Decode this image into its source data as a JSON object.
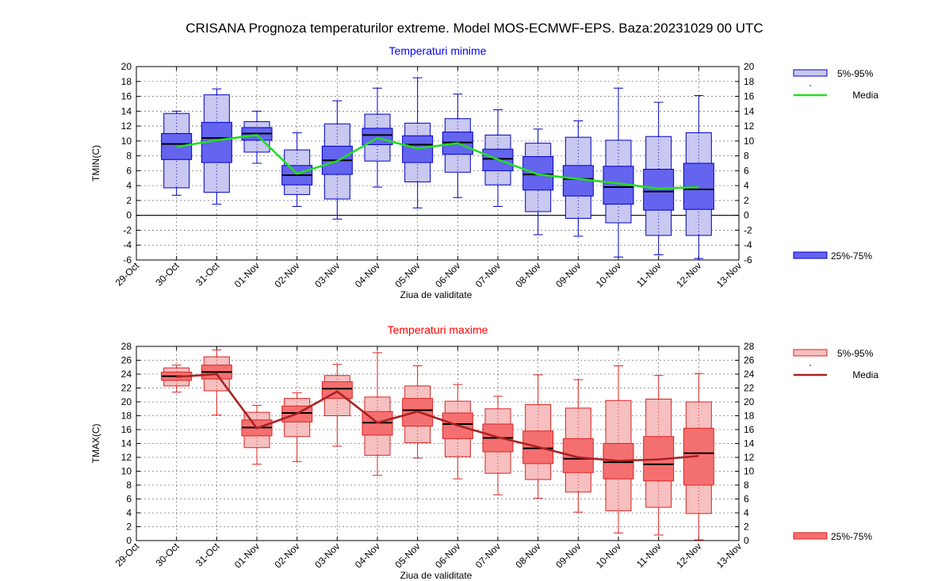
{
  "title": "CRISANA  Prognoza temperaturilor extreme.  Model MOS-ECMWF-EPS. Baza:20231029 00 UTC",
  "chart_data": [
    {
      "type": "boxplot",
      "title": "Temperaturi minime",
      "ylabel": "TMIN(C)",
      "xlabel": "Ziua de validitate",
      "ylim": [
        -6,
        20
      ],
      "yticks": [
        -6,
        -4,
        -2,
        0,
        2,
        4,
        6,
        8,
        10,
        12,
        14,
        16,
        18,
        20
      ],
      "categories": [
        "29-Oct",
        "30-Oct",
        "31-Oct",
        "01-Nov",
        "02-Nov",
        "03-Nov",
        "04-Nov",
        "05-Nov",
        "06-Nov",
        "07-Nov",
        "08-Nov",
        "09-Nov",
        "10-Nov",
        "11-Nov",
        "12-Nov",
        "13-Nov"
      ],
      "grid": true,
      "zero_line": true,
      "colors": {
        "text": "#0000ff",
        "line": "#0000cc",
        "box_outer": "#c8c8f0",
        "box_inner": "#6464ee",
        "mean": "#22dd22"
      },
      "legend": {
        "p5_95": "5%-95%",
        "mean": "Media",
        "p25_75": "25%-75%"
      },
      "boxes": [
        {
          "day": "30-Oct",
          "p5": 2.7,
          "p95": 14.0,
          "p5b": 3.7,
          "p95b": 13.7,
          "q1": 7.5,
          "q3": 11.0,
          "median": 9.6,
          "mean": 9.2
        },
        {
          "day": "31-Oct",
          "p5": 1.5,
          "p95": 17.0,
          "p5b": 3.1,
          "p95b": 16.2,
          "q1": 7.1,
          "q3": 12.5,
          "median": 10.4,
          "mean": 10.1
        },
        {
          "day": "01-Nov",
          "p5": 7.0,
          "p95": 14.0,
          "p5b": 8.5,
          "p95b": 12.6,
          "q1": 10.1,
          "q3": 11.8,
          "median": 11.0,
          "mean": 10.8
        },
        {
          "day": "02-Nov",
          "p5": 1.2,
          "p95": 11.1,
          "p5b": 2.8,
          "p95b": 8.8,
          "q1": 4.1,
          "q3": 6.7,
          "median": 5.4,
          "mean": 5.6
        },
        {
          "day": "03-Nov",
          "p5": -0.5,
          "p95": 15.4,
          "p5b": 2.2,
          "p95b": 12.3,
          "q1": 5.5,
          "q3": 9.3,
          "median": 7.4,
          "mean": 7.3
        },
        {
          "day": "04-Nov",
          "p5": 3.8,
          "p95": 17.1,
          "p5b": 7.3,
          "p95b": 13.6,
          "q1": 9.5,
          "q3": 11.7,
          "median": 10.8,
          "mean": 10.4
        },
        {
          "day": "05-Nov",
          "p5": 1.0,
          "p95": 18.5,
          "p5b": 4.5,
          "p95b": 12.4,
          "q1": 7.1,
          "q3": 10.7,
          "median": 9.5,
          "mean": 9.0
        },
        {
          "day": "06-Nov",
          "p5": 2.4,
          "p95": 16.3,
          "p5b": 5.8,
          "p95b": 13.0,
          "q1": 8.2,
          "q3": 11.2,
          "median": 9.8,
          "mean": 9.7
        },
        {
          "day": "07-Nov",
          "p5": 1.2,
          "p95": 14.2,
          "p5b": 4.1,
          "p95b": 10.8,
          "q1": 6.0,
          "q3": 8.9,
          "median": 7.6,
          "mean": 7.5
        },
        {
          "day": "08-Nov",
          "p5": -2.6,
          "p95": 11.6,
          "p5b": 0.5,
          "p95b": 9.7,
          "q1": 3.4,
          "q3": 7.9,
          "median": 5.5,
          "mean": 5.5
        },
        {
          "day": "09-Nov",
          "p5": -2.8,
          "p95": 12.7,
          "p5b": -0.4,
          "p95b": 10.5,
          "q1": 2.6,
          "q3": 6.7,
          "median": 4.9,
          "mean": 4.9
        },
        {
          "day": "10-Nov",
          "p5": -5.6,
          "p95": 17.1,
          "p5b": -1.0,
          "p95b": 10.1,
          "q1": 1.5,
          "q3": 6.6,
          "median": 3.8,
          "mean": 4.3
        },
        {
          "day": "11-Nov",
          "p5": -5.3,
          "p95": 15.2,
          "p5b": -2.7,
          "p95b": 10.6,
          "q1": 0.7,
          "q3": 6.2,
          "median": 3.2,
          "mean": 3.6
        },
        {
          "day": "12-Nov",
          "p5": -5.8,
          "p95": 16.1,
          "p5b": -2.7,
          "p95b": 11.1,
          "q1": 0.8,
          "q3": 7.0,
          "median": 3.5,
          "mean": 3.8
        }
      ]
    },
    {
      "type": "boxplot",
      "title": "Temperaturi maxime",
      "ylabel": "TMAX(C)",
      "xlabel": "Ziua de validitate",
      "ylim": [
        0,
        28
      ],
      "yticks": [
        0,
        2,
        4,
        6,
        8,
        10,
        12,
        14,
        16,
        18,
        20,
        22,
        24,
        26,
        28
      ],
      "categories": [
        "29-Oct",
        "30-Oct",
        "31-Oct",
        "01-Nov",
        "02-Nov",
        "03-Nov",
        "04-Nov",
        "05-Nov",
        "06-Nov",
        "07-Nov",
        "08-Nov",
        "09-Nov",
        "10-Nov",
        "11-Nov",
        "12-Nov",
        "13-Nov"
      ],
      "grid": true,
      "zero_line": false,
      "colors": {
        "text": "#ff0000",
        "line": "#dd2222",
        "box_outer": "#f6c0c0",
        "box_inner": "#f47070",
        "mean": "#aa2222"
      },
      "legend": {
        "p5_95": "5%-95%",
        "mean": "Media",
        "p25_75": "25%-75%"
      },
      "boxes": [
        {
          "day": "30-Oct",
          "p5": 21.4,
          "p95": 25.3,
          "p5b": 22.3,
          "p95b": 24.9,
          "q1": 23.1,
          "q3": 24.3,
          "median": 23.7,
          "mean": 23.6
        },
        {
          "day": "31-Oct",
          "p5": 18.1,
          "p95": 27.5,
          "p5b": 21.6,
          "p95b": 26.5,
          "q1": 23.3,
          "q3": 25.3,
          "median": 24.3,
          "mean": 24.0
        },
        {
          "day": "01-Nov",
          "p5": 11.0,
          "p95": 19.5,
          "p5b": 13.4,
          "p95b": 18.5,
          "q1": 15.1,
          "q3": 17.4,
          "median": 16.3,
          "mean": 16.2
        },
        {
          "day": "02-Nov",
          "p5": 11.4,
          "p95": 21.3,
          "p5b": 15.0,
          "p95b": 20.5,
          "q1": 17.1,
          "q3": 19.4,
          "median": 18.4,
          "mean": 18.3
        },
        {
          "day": "03-Nov",
          "p5": 13.6,
          "p95": 25.4,
          "p5b": 18.0,
          "p95b": 23.8,
          "q1": 20.5,
          "q3": 22.9,
          "median": 21.9,
          "mean": 21.5
        },
        {
          "day": "04-Nov",
          "p5": 9.4,
          "p95": 27.1,
          "p5b": 12.3,
          "p95b": 20.7,
          "q1": 15.2,
          "q3": 18.6,
          "median": 17.0,
          "mean": 17.0
        },
        {
          "day": "05-Nov",
          "p5": 11.9,
          "p95": 25.2,
          "p5b": 14.1,
          "p95b": 22.3,
          "q1": 16.5,
          "q3": 20.5,
          "median": 18.8,
          "mean": 18.6
        },
        {
          "day": "06-Nov",
          "p5": 8.9,
          "p95": 22.5,
          "p5b": 12.1,
          "p95b": 20.1,
          "q1": 14.7,
          "q3": 18.4,
          "median": 16.8,
          "mean": 16.6
        },
        {
          "day": "07-Nov",
          "p5": 6.6,
          "p95": 20.8,
          "p5b": 9.7,
          "p95b": 19.0,
          "q1": 12.8,
          "q3": 16.8,
          "median": 14.8,
          "mean": 14.9
        },
        {
          "day": "08-Nov",
          "p5": 6.1,
          "p95": 23.9,
          "p5b": 8.8,
          "p95b": 19.6,
          "q1": 11.1,
          "q3": 15.8,
          "median": 13.3,
          "mean": 13.5
        },
        {
          "day": "09-Nov",
          "p5": 4.1,
          "p95": 23.2,
          "p5b": 7.0,
          "p95b": 19.1,
          "q1": 9.8,
          "q3": 14.7,
          "median": 11.8,
          "mean": 12.0
        },
        {
          "day": "10-Nov",
          "p5": 1.1,
          "p95": 25.2,
          "p5b": 4.3,
          "p95b": 20.2,
          "q1": 8.9,
          "q3": 14.0,
          "median": 11.3,
          "mean": 11.5
        },
        {
          "day": "11-Nov",
          "p5": 0.8,
          "p95": 23.8,
          "p5b": 4.8,
          "p95b": 20.4,
          "q1": 8.6,
          "q3": 15.0,
          "median": 11.0,
          "mean": 11.7
        },
        {
          "day": "12-Nov",
          "p5": 0.1,
          "p95": 24.1,
          "p5b": 3.9,
          "p95b": 20.0,
          "q1": 8.0,
          "q3": 16.2,
          "median": 12.6,
          "mean": 12.2
        }
      ]
    }
  ]
}
